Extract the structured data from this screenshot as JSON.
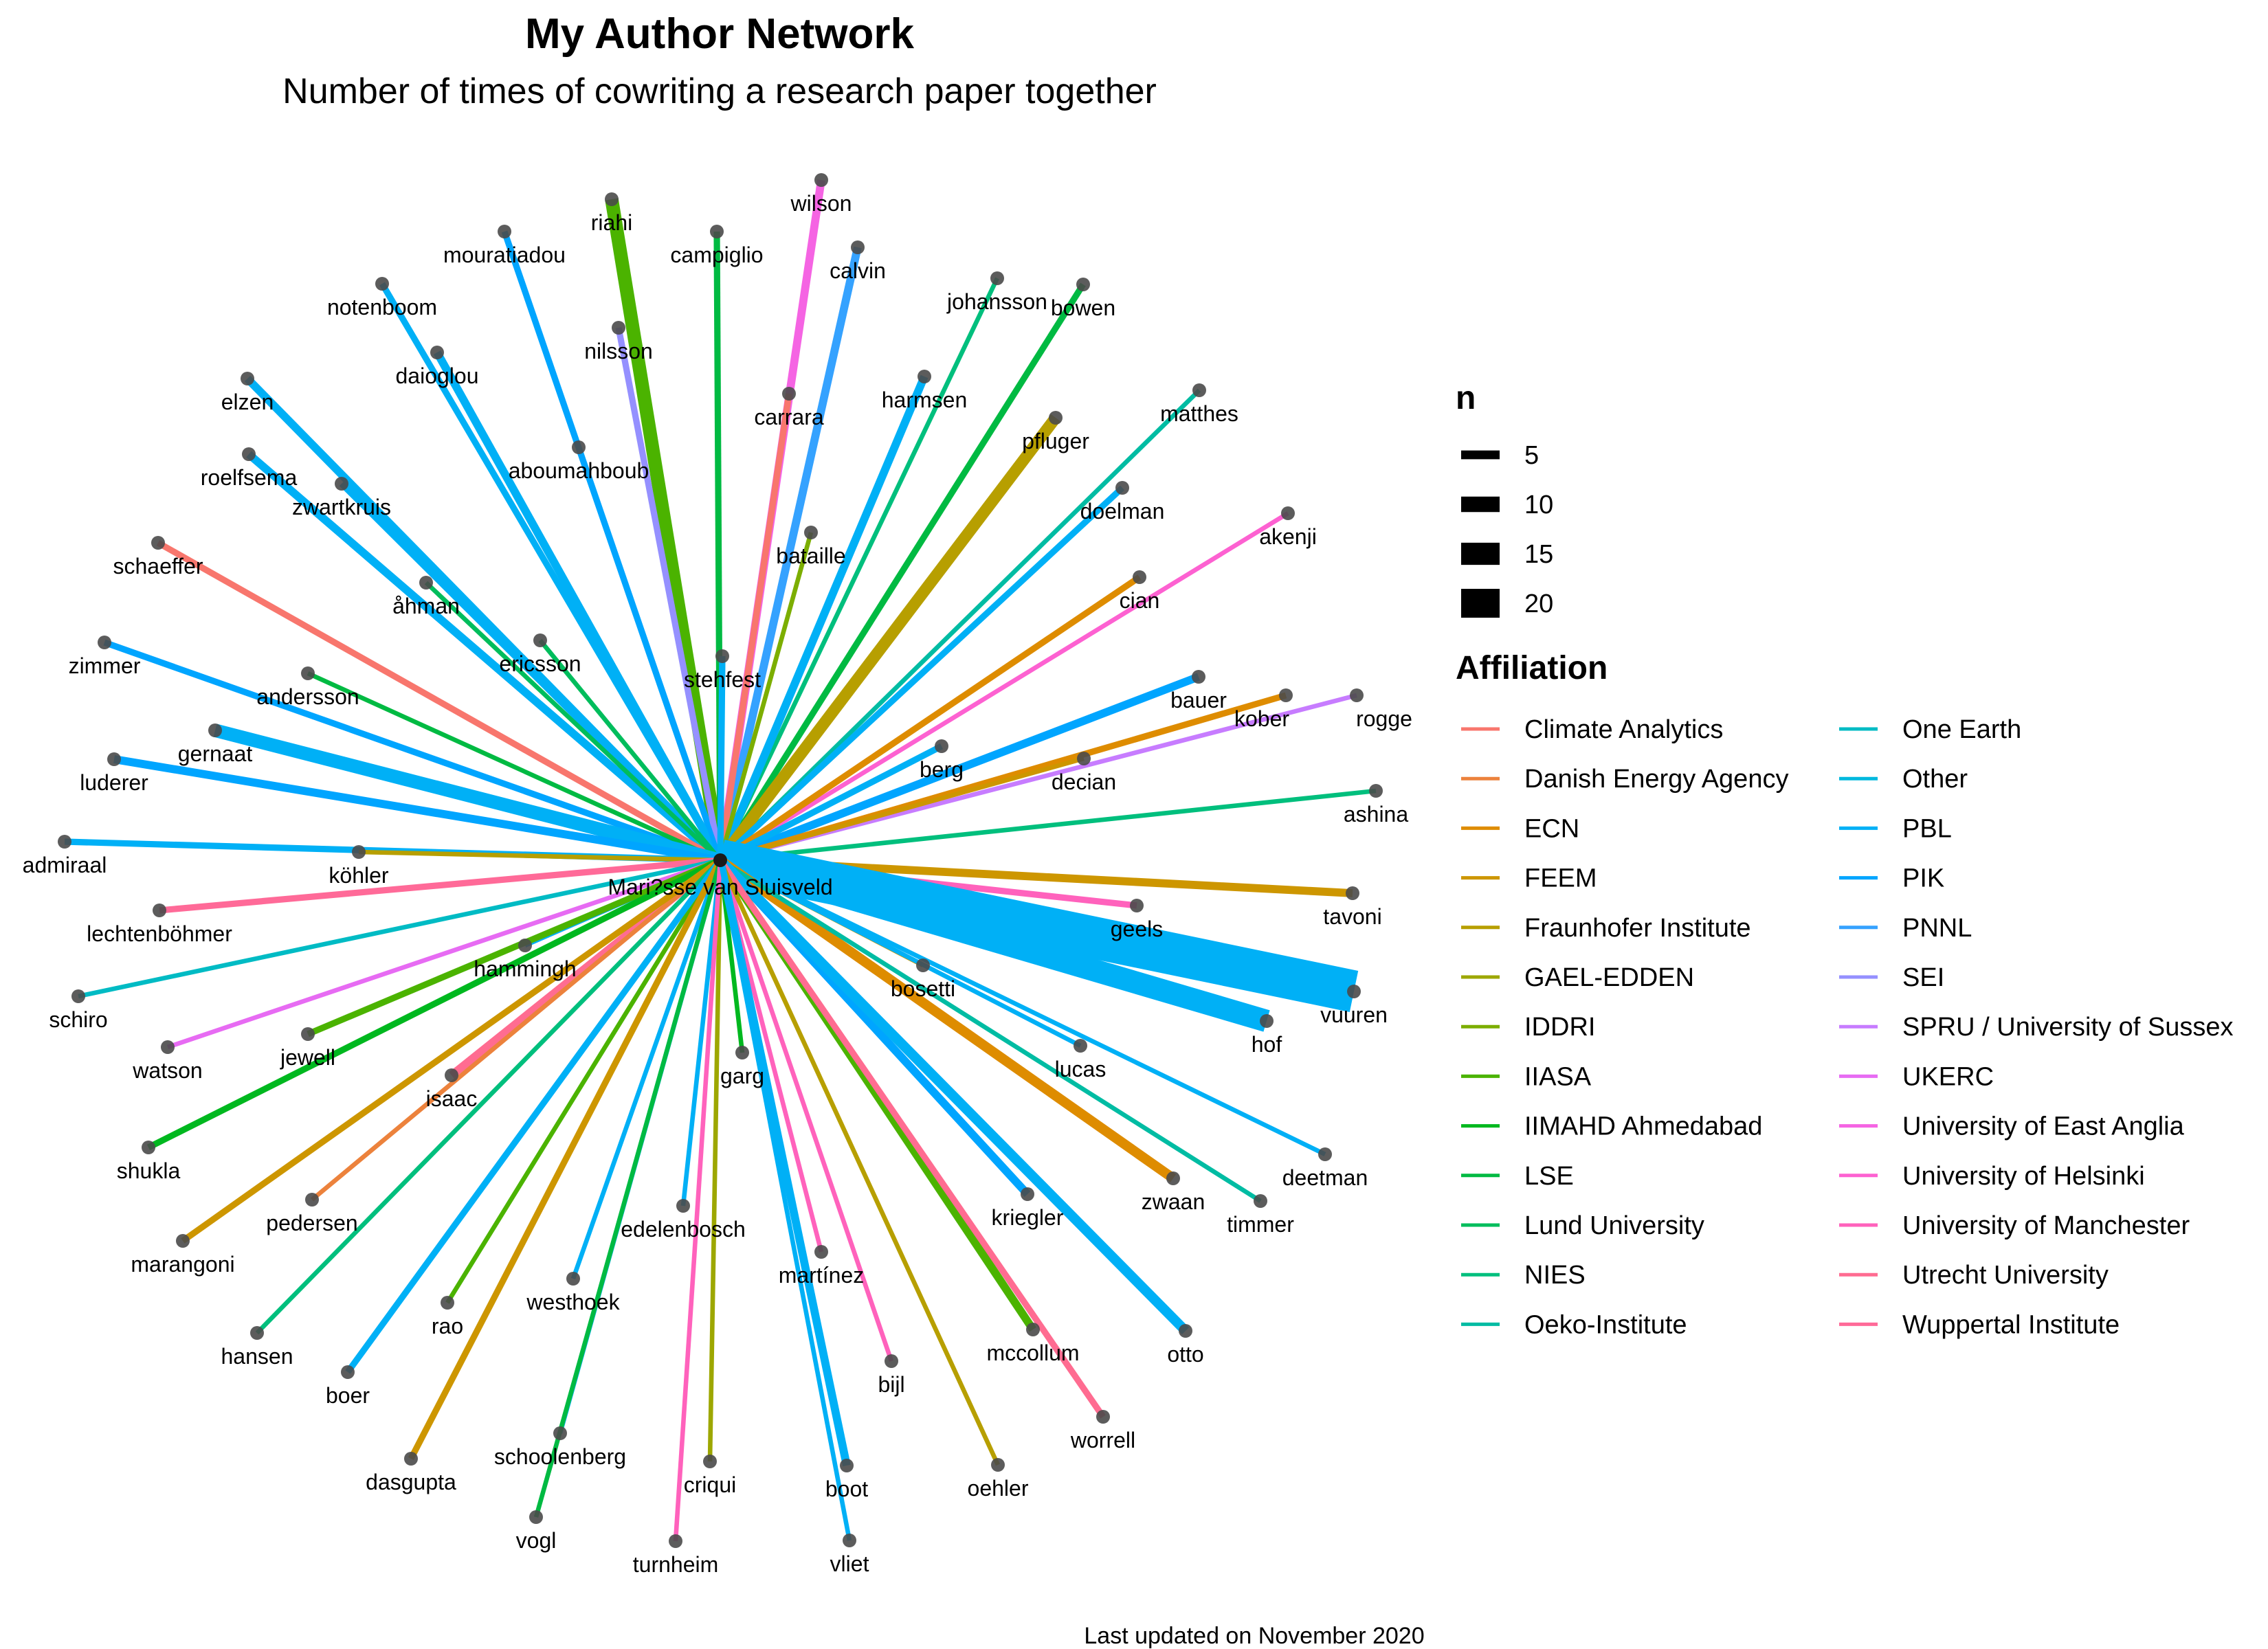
{
  "chart_data": {
    "type": "network",
    "title": "My Author Network",
    "subtitle": "Number of times of cowriting a research paper together",
    "caption": "Last updated on November 2020",
    "center_node": "Mari?sse van Sluisveld",
    "size_legend": {
      "title": "n",
      "values": [
        5,
        10,
        15,
        20
      ]
    },
    "color_legend": {
      "title": "Affiliation",
      "items": [
        {
          "name": "Climate Analytics",
          "color": "#F8766D"
        },
        {
          "name": "Danish Energy Agency",
          "color": "#EC823C"
        },
        {
          "name": "ECN",
          "color": "#DE8C00"
        },
        {
          "name": "FEEM",
          "color": "#CD9600"
        },
        {
          "name": "Fraunhofer Institute",
          "color": "#B79F00"
        },
        {
          "name": "GAEL-EDDEN",
          "color": "#9DA700"
        },
        {
          "name": "IDDRI",
          "color": "#7CAE00"
        },
        {
          "name": "IIASA",
          "color": "#4BB300"
        },
        {
          "name": "IIMAHD Ahmedabad",
          "color": "#00B81F"
        },
        {
          "name": "LSE",
          "color": "#00BA42"
        },
        {
          "name": "Lund University",
          "color": "#00BD5C"
        },
        {
          "name": "NIES",
          "color": "#00BF7D"
        },
        {
          "name": "Oeko-Institute",
          "color": "#00BCA3"
        },
        {
          "name": "One Earth",
          "color": "#00BBC4"
        },
        {
          "name": "Other",
          "color": "#00B8DE"
        },
        {
          "name": "PBL",
          "color": "#00B0F6"
        },
        {
          "name": "PIK",
          "color": "#00A5FF"
        },
        {
          "name": "PNNL",
          "color": "#35A2FF"
        },
        {
          "name": "SEI",
          "color": "#9590FF"
        },
        {
          "name": "SPRU / University of Sussex",
          "color": "#C77CFF"
        },
        {
          "name": "UKERC",
          "color": "#E76BF3"
        },
        {
          "name": "University of East Anglia",
          "color": "#F564E3"
        },
        {
          "name": "University of Helsinki",
          "color": "#FD61D1"
        },
        {
          "name": "University of Manchester",
          "color": "#FF62BC"
        },
        {
          "name": "Utrecht University",
          "color": "#FF6C91"
        },
        {
          "name": "Wuppertal Institute",
          "color": "#FF6A98"
        }
      ]
    },
    "edges": [
      {
        "author": "riahi",
        "affiliation": "IIASA",
        "n": 6
      },
      {
        "author": "campiglio",
        "affiliation": "LSE",
        "n": 2
      },
      {
        "author": "wilson",
        "affiliation": "University of East Anglia",
        "n": 3
      },
      {
        "author": "calvin",
        "affiliation": "PNNL",
        "n": 3
      },
      {
        "author": "mouratiadou",
        "affiliation": "PIK",
        "n": 2
      },
      {
        "author": "nilsson",
        "affiliation": "SEI",
        "n": 2
      },
      {
        "author": "notenboom",
        "affiliation": "PBL",
        "n": 2
      },
      {
        "author": "daioglou",
        "affiliation": "PBL",
        "n": 3
      },
      {
        "author": "elzen",
        "affiliation": "PBL",
        "n": 3
      },
      {
        "author": "carrara",
        "affiliation": "Climate Analytics",
        "n": 2
      },
      {
        "author": "johansson",
        "affiliation": "NIES",
        "n": 1
      },
      {
        "author": "bowen",
        "affiliation": "LSE",
        "n": 2
      },
      {
        "author": "harmsen",
        "affiliation": "PBL",
        "n": 3
      },
      {
        "author": "matthes",
        "affiliation": "Oeko-Institute",
        "n": 1
      },
      {
        "author": "pfluger",
        "affiliation": "Fraunhofer Institute",
        "n": 5
      },
      {
        "author": "aboumahboub",
        "affiliation": "PIK",
        "n": 1
      },
      {
        "author": "roelfsema",
        "affiliation": "PBL",
        "n": 3
      },
      {
        "author": "zwartkruis",
        "affiliation": "PBL",
        "n": 2
      },
      {
        "author": "doelman",
        "affiliation": "PBL",
        "n": 2
      },
      {
        "author": "bataille",
        "affiliation": "IDDRI",
        "n": 1
      },
      {
        "author": "akenji",
        "affiliation": "University of Helsinki",
        "n": 1
      },
      {
        "author": "schaeffer",
        "affiliation": "Climate Analytics",
        "n": 2
      },
      {
        "author": "cian",
        "affiliation": "ECN",
        "n": 2
      },
      {
        "author": "åhman",
        "affiliation": "Lund University",
        "n": 1
      },
      {
        "author": "zimmer",
        "affiliation": "PIK",
        "n": 2
      },
      {
        "author": "ericsson",
        "affiliation": "Lund University",
        "n": 1
      },
      {
        "author": "stehfest",
        "affiliation": "PBL",
        "n": 2
      },
      {
        "author": "andersson",
        "affiliation": "LSE",
        "n": 1
      },
      {
        "author": "bauer",
        "affiliation": "PIK",
        "n": 3
      },
      {
        "author": "kober",
        "affiliation": "ECN",
        "n": 2
      },
      {
        "author": "rogge",
        "affiliation": "SPRU / University of Sussex",
        "n": 1
      },
      {
        "author": "gernaat",
        "affiliation": "PBL",
        "n": 6
      },
      {
        "author": "berg",
        "affiliation": "PBL",
        "n": 2
      },
      {
        "author": "decian",
        "affiliation": "FEEM",
        "n": 1
      },
      {
        "author": "luderer",
        "affiliation": "PIK",
        "n": 3
      },
      {
        "author": "ashina",
        "affiliation": "NIES",
        "n": 1
      },
      {
        "author": "admiraal",
        "affiliation": "PBL",
        "n": 2
      },
      {
        "author": "köhler",
        "affiliation": "Fraunhofer Institute",
        "n": 1
      },
      {
        "author": "tavoni",
        "affiliation": "FEEM",
        "n": 3
      },
      {
        "author": "lechtenböhmer",
        "affiliation": "Wuppertal Institute",
        "n": 2
      },
      {
        "author": "geels",
        "affiliation": "University of Manchester",
        "n": 2
      },
      {
        "author": "hammingh",
        "affiliation": "PBL",
        "n": 1
      },
      {
        "author": "schiro",
        "affiliation": "One Earth",
        "n": 1
      },
      {
        "author": "bosetti",
        "affiliation": "FEEM",
        "n": 1
      },
      {
        "author": "vuuren",
        "affiliation": "PBL",
        "n": 22
      },
      {
        "author": "hof",
        "affiliation": "PBL",
        "n": 11
      },
      {
        "author": "watson",
        "affiliation": "UKERC",
        "n": 1
      },
      {
        "author": "jewell",
        "affiliation": "IIASA",
        "n": 2
      },
      {
        "author": "lucas",
        "affiliation": "PBL",
        "n": 1
      },
      {
        "author": "isaac",
        "affiliation": "Utrecht University",
        "n": 3
      },
      {
        "author": "garg",
        "affiliation": "IIMAHD Ahmedabad",
        "n": 1
      },
      {
        "author": "shukla",
        "affiliation": "IIMAHD Ahmedabad",
        "n": 2
      },
      {
        "author": "deetman",
        "affiliation": "PBL",
        "n": 1
      },
      {
        "author": "zwaan",
        "affiliation": "ECN",
        "n": 4
      },
      {
        "author": "timmer",
        "affiliation": "Oeko-Institute",
        "n": 1
      },
      {
        "author": "pedersen",
        "affiliation": "Danish Energy Agency",
        "n": 1
      },
      {
        "author": "kriegler",
        "affiliation": "PIK",
        "n": 3
      },
      {
        "author": "edelenbosch",
        "affiliation": "PBL",
        "n": 1
      },
      {
        "author": "marangoni",
        "affiliation": "FEEM",
        "n": 2
      },
      {
        "author": "martínez",
        "affiliation": "University of Manchester",
        "n": 1
      },
      {
        "author": "westhoek",
        "affiliation": "PBL",
        "n": 1
      },
      {
        "author": "hansen",
        "affiliation": "NIES",
        "n": 1
      },
      {
        "author": "rao",
        "affiliation": "IIASA",
        "n": 1
      },
      {
        "author": "mccollum",
        "affiliation": "IIASA",
        "n": 3
      },
      {
        "author": "otto",
        "affiliation": "PBL",
        "n": 4
      },
      {
        "author": "bijl",
        "affiliation": "University of Manchester",
        "n": 1
      },
      {
        "author": "boer",
        "affiliation": "PBL",
        "n": 2
      },
      {
        "author": "worrell",
        "affiliation": "Utrecht University",
        "n": 2
      },
      {
        "author": "schoolenberg",
        "affiliation": "PBL",
        "n": 1
      },
      {
        "author": "dasgupta",
        "affiliation": "FEEM",
        "n": 2
      },
      {
        "author": "oehler",
        "affiliation": "Fraunhofer Institute",
        "n": 1
      },
      {
        "author": "criqui",
        "affiliation": "GAEL-EDDEN",
        "n": 1
      },
      {
        "author": "boot",
        "affiliation": "PBL",
        "n": 3
      },
      {
        "author": "vogl",
        "affiliation": "LSE",
        "n": 1
      },
      {
        "author": "turnheim",
        "affiliation": "University of Manchester",
        "n": 1
      },
      {
        "author": "vliet",
        "affiliation": "PBL",
        "n": 1
      }
    ]
  }
}
